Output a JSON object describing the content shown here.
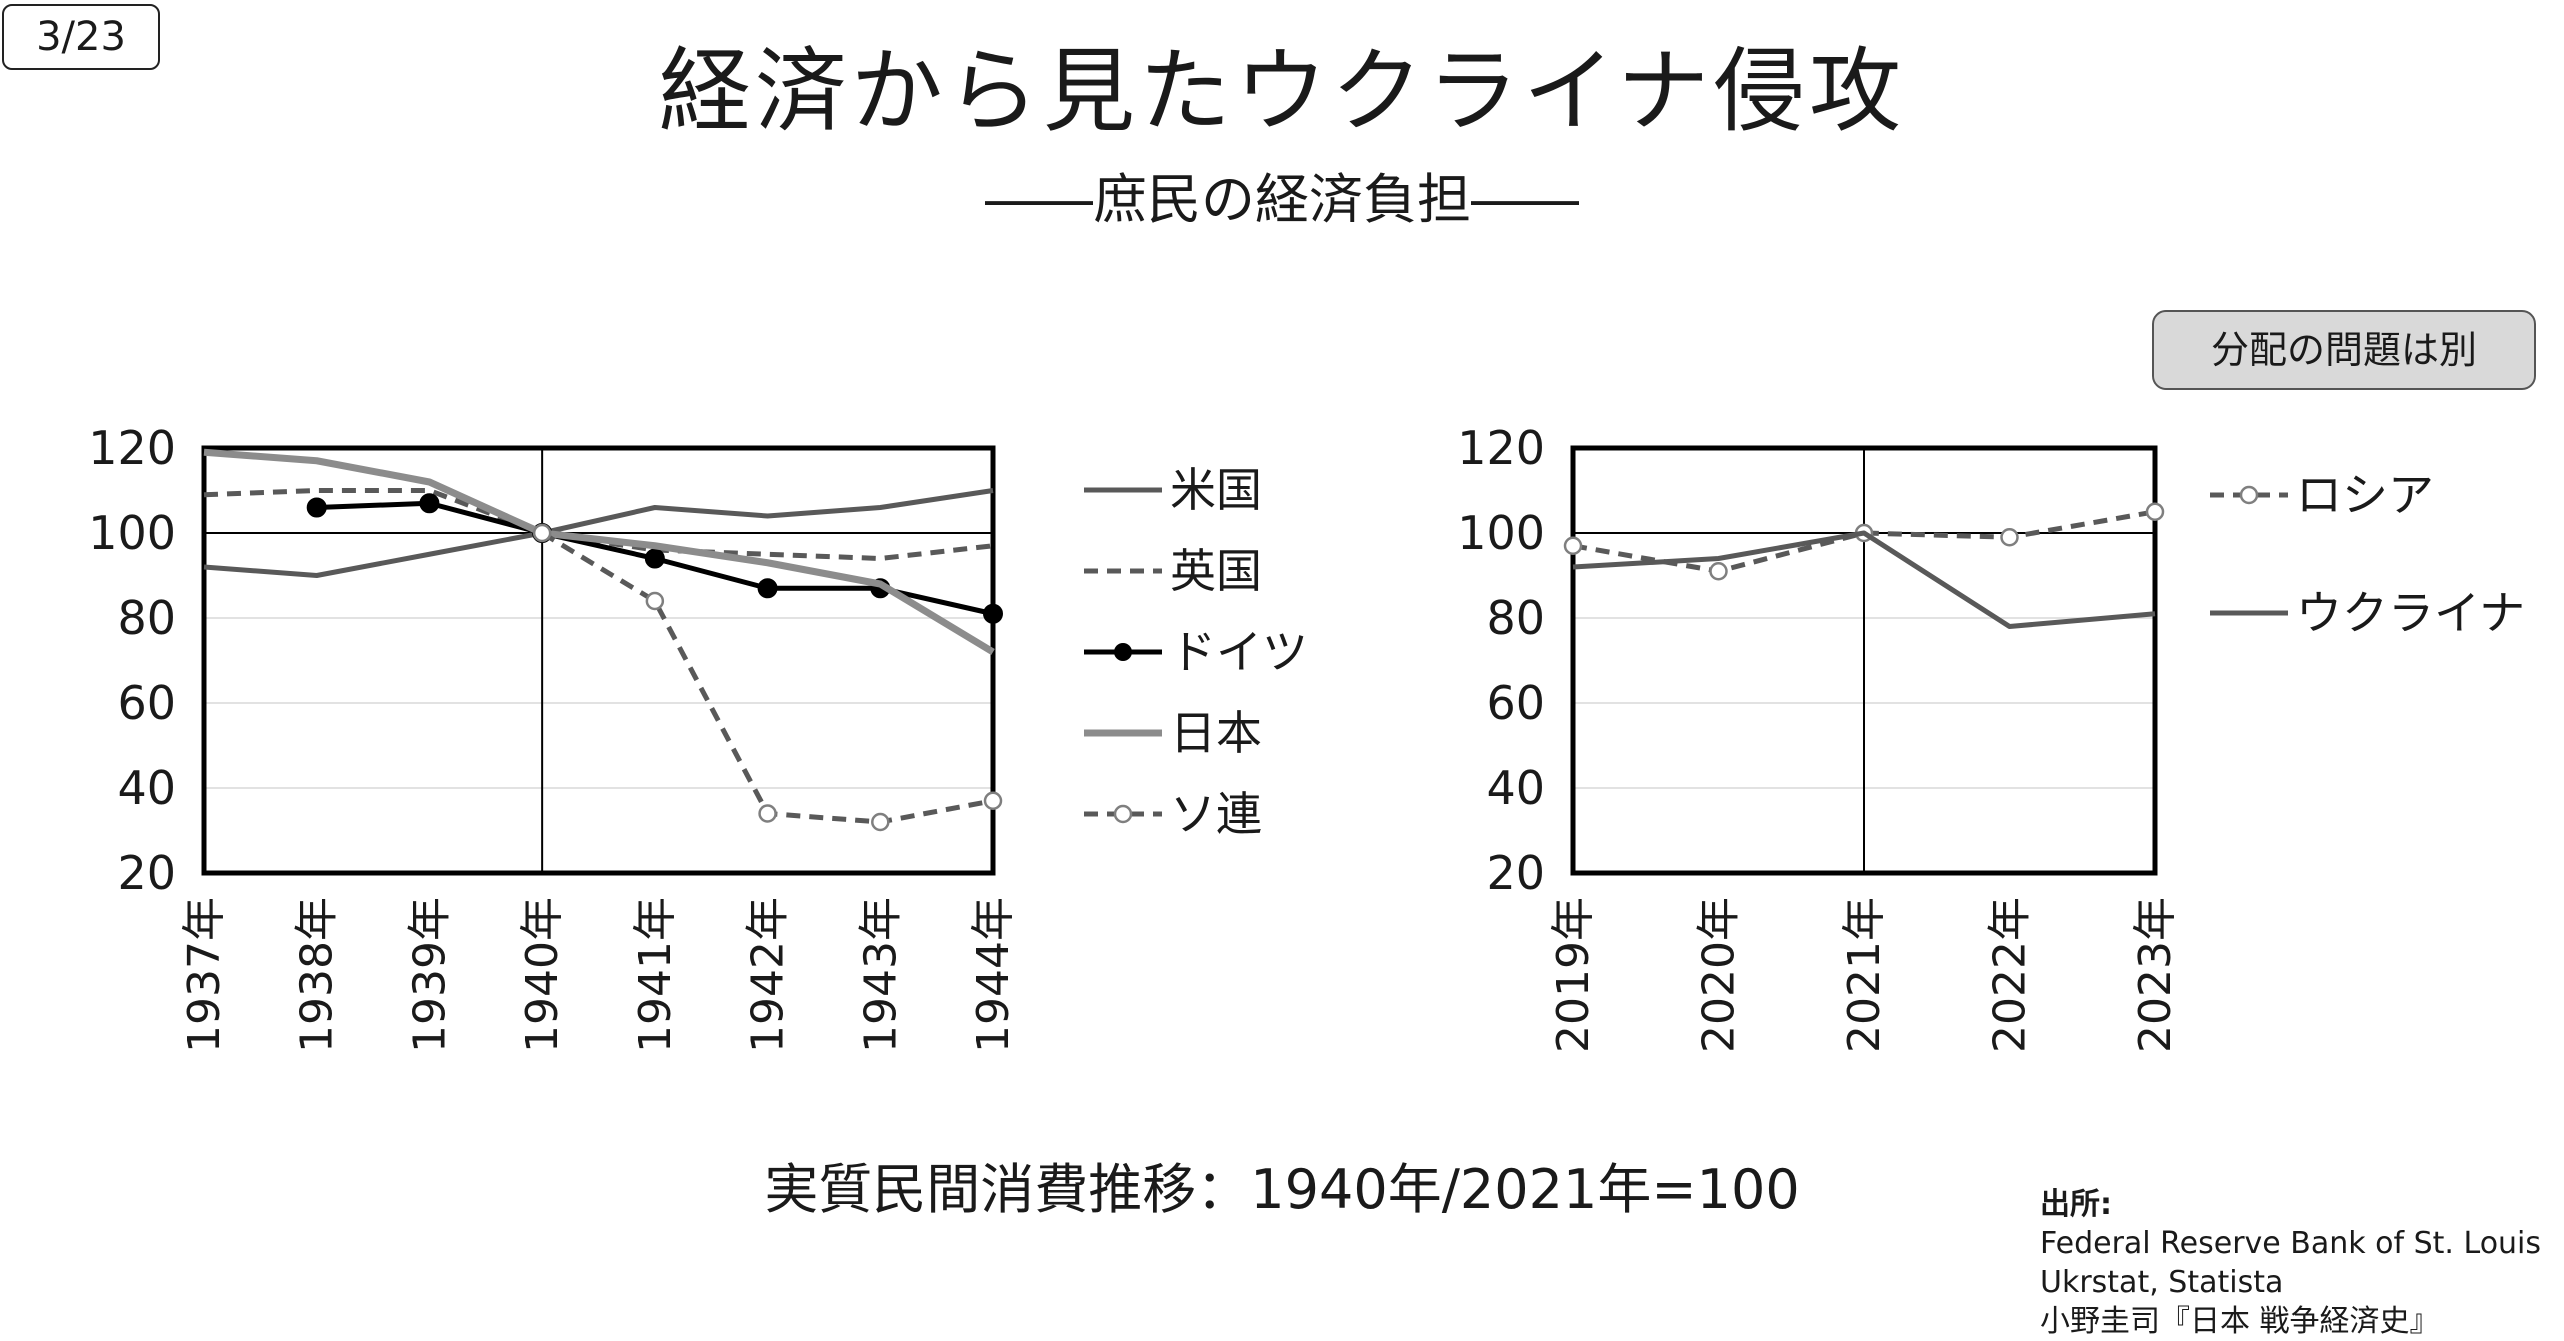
{
  "page_number": "3/23",
  "title": "経済から見たウクライナ侵攻",
  "subtitle": "――庶民の経済負担――",
  "note_button": "分配の問題は別",
  "caption": "実質民間消費推移：1940年/2021年=100",
  "source": {
    "label": "出所:",
    "lines": [
      "Federal Reserve Bank of St. Louis",
      "Ukrstat, Statista",
      "小野圭司『日本 戦争経済史』"
    ]
  },
  "chart_data": [
    {
      "type": "line",
      "title": "",
      "ylim": [
        20,
        120
      ],
      "yticks": [
        20,
        40,
        60,
        80,
        100,
        120
      ],
      "categories": [
        "1937年",
        "1938年",
        "1939年",
        "1940年",
        "1941年",
        "1942年",
        "1943年",
        "1944年"
      ],
      "reference_line_y": 100,
      "reference_line_category": "1940年",
      "legend_position": "right",
      "series": [
        {
          "name": "米国",
          "color": "#595959",
          "dash": "solid",
          "marker": "none",
          "values": [
            92,
            90,
            95,
            100,
            106,
            104,
            106,
            110
          ]
        },
        {
          "name": "英国",
          "color": "#595959",
          "dash": "dashed",
          "marker": "none",
          "values": [
            109,
            110,
            110,
            100,
            96,
            95,
            94,
            97
          ]
        },
        {
          "name": "ドイツ",
          "color": "#000000",
          "dash": "solid",
          "marker": "filled-circle",
          "values": [
            null,
            106,
            107,
            100,
            94,
            87,
            87,
            81
          ]
        },
        {
          "name": "日本",
          "color": "#8c8c8c",
          "dash": "solid",
          "marker": "none",
          "values": [
            119,
            117,
            112,
            100,
            97,
            93,
            88,
            72
          ]
        },
        {
          "name": "ソ連",
          "color": "#595959",
          "dash": "dashed",
          "marker": "open-circle",
          "values": [
            null,
            null,
            null,
            100,
            84,
            34,
            32,
            37
          ]
        }
      ]
    },
    {
      "type": "line",
      "title": "",
      "ylim": [
        20,
        120
      ],
      "yticks": [
        20,
        40,
        60,
        80,
        100,
        120
      ],
      "categories": [
        "2019年",
        "2020年",
        "2021年",
        "2022年",
        "2023年"
      ],
      "reference_line_y": 100,
      "reference_line_category": "2021年",
      "legend_position": "right",
      "series": [
        {
          "name": "ロシア",
          "color": "#595959",
          "dash": "dashed",
          "marker": "open-circle",
          "values": [
            97,
            91,
            100,
            99,
            105
          ]
        },
        {
          "name": "ウクライナ",
          "color": "#595959",
          "dash": "solid",
          "marker": "none",
          "values": [
            92,
            94,
            100,
            78,
            81
          ]
        }
      ]
    }
  ]
}
